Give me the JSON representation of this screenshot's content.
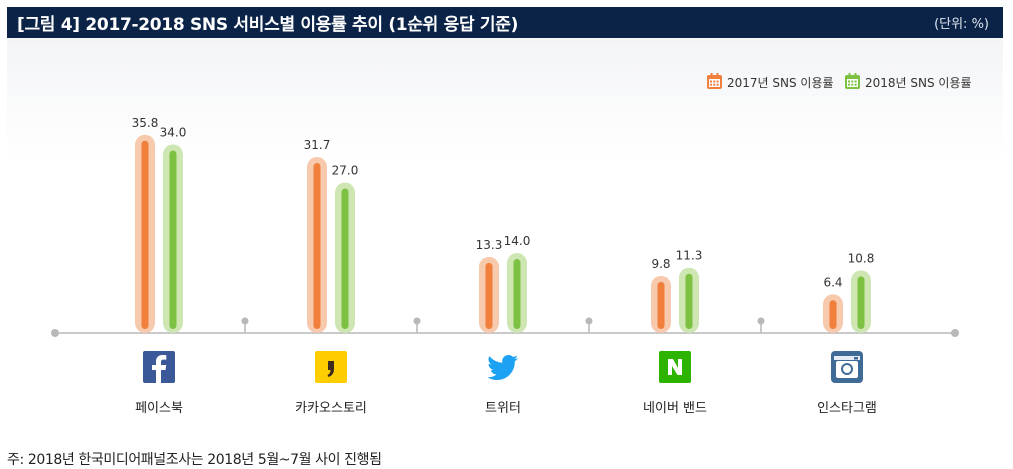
{
  "header": {
    "title": "[그림 4]  2017-2018 SNS 서비스별 이용률 추이 (1순위 응답 기준)",
    "unit": "(단위: %)"
  },
  "footnote": "주: 2018년 한국미디어패널조사는 2018년 5월~7월 사이 진행됨",
  "colors": {
    "header_bg": "#0b2347",
    "series_2017": "#f0803c",
    "series_2017_halo": "#f7c9ad",
    "series_2018": "#7dc143",
    "series_2018_halo": "#cde6b2",
    "axis": "#b8b8b8"
  },
  "chart_data": {
    "type": "bar",
    "categories": [
      "페이스북",
      "카카오스토리",
      "트위터",
      "네이버 밴드",
      "인스타그램"
    ],
    "category_icons": [
      "facebook-icon",
      "kakaostory-icon",
      "twitter-icon",
      "naver-band-icon",
      "instagram-icon"
    ],
    "series": [
      {
        "name": "2017년 SNS 이용률",
        "values": [
          35.8,
          31.7,
          13.3,
          9.8,
          6.4
        ]
      },
      {
        "name": "2018년 SNS 이용률",
        "values": [
          34.0,
          27.0,
          14.0,
          11.3,
          10.8
        ]
      }
    ],
    "value_labels": [
      [
        "35.8",
        "31.7",
        "13.3",
        "9.8",
        "6.4"
      ],
      [
        "34.0",
        "27.0",
        "14.0",
        "11.3",
        "10.8"
      ]
    ],
    "ylim": [
      0,
      40
    ],
    "legend_position": "top-right",
    "grid": false
  }
}
